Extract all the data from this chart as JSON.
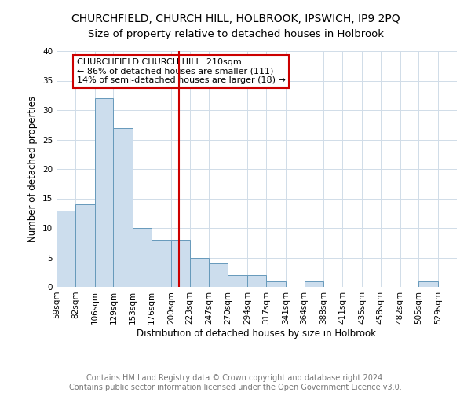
{
  "title": "CHURCHFIELD, CHURCH HILL, HOLBROOK, IPSWICH, IP9 2PQ",
  "subtitle": "Size of property relative to detached houses in Holbrook",
  "xlabel": "Distribution of detached houses by size in Holbrook",
  "ylabel": "Number of detached properties",
  "bin_labels": [
    "59sqm",
    "82sqm",
    "106sqm",
    "129sqm",
    "153sqm",
    "176sqm",
    "200sqm",
    "223sqm",
    "247sqm",
    "270sqm",
    "294sqm",
    "317sqm",
    "341sqm",
    "364sqm",
    "388sqm",
    "411sqm",
    "435sqm",
    "458sqm",
    "482sqm",
    "505sqm",
    "529sqm"
  ],
  "bin_edges": [
    59,
    82,
    106,
    129,
    153,
    176,
    200,
    223,
    247,
    270,
    294,
    317,
    341,
    364,
    388,
    411,
    435,
    458,
    482,
    505,
    529,
    552
  ],
  "bar_heights": [
    13,
    14,
    32,
    27,
    10,
    8,
    8,
    5,
    4,
    2,
    2,
    1,
    0,
    1,
    0,
    0,
    0,
    0,
    0,
    1,
    0
  ],
  "bar_color": "#ccdded",
  "bar_edge_color": "#6699bb",
  "vline_x": 210,
  "vline_color": "#cc0000",
  "annotation_text": "CHURCHFIELD CHURCH HILL: 210sqm\n← 86% of detached houses are smaller (111)\n14% of semi-detached houses are larger (18) →",
  "annotation_box_color": "#ffffff",
  "annotation_box_edge": "#cc0000",
  "ylim": [
    0,
    40
  ],
  "yticks": [
    0,
    5,
    10,
    15,
    20,
    25,
    30,
    35,
    40
  ],
  "grid_color": "#d0dce8",
  "footer_text": "Contains HM Land Registry data © Crown copyright and database right 2024.\nContains public sector information licensed under the Open Government Licence v3.0.",
  "title_fontsize": 10,
  "subtitle_fontsize": 9.5,
  "axis_label_fontsize": 8.5,
  "tick_fontsize": 7.5,
  "annotation_fontsize": 8,
  "footer_fontsize": 7
}
